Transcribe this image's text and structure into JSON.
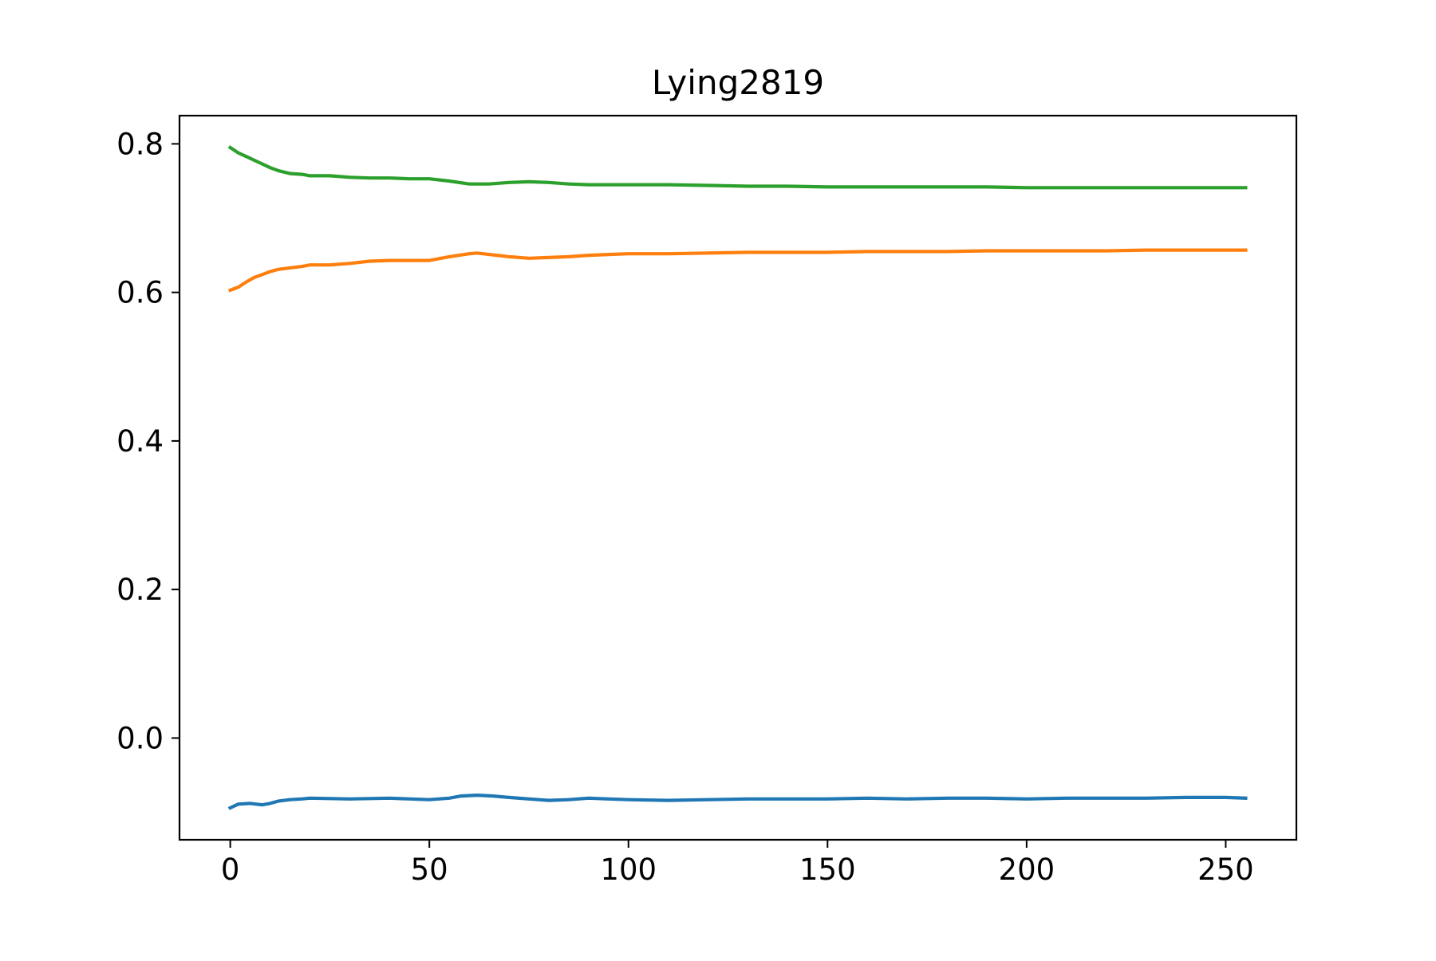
{
  "chart_data": {
    "type": "line",
    "title": "Lying2819",
    "xlabel": "",
    "ylabel": "",
    "xlim": [
      -12.75,
      267.75
    ],
    "ylim": [
      -0.137,
      0.838
    ],
    "x_ticks": [
      0,
      50,
      100,
      150,
      200,
      250
    ],
    "x_tick_labels": [
      "0",
      "50",
      "100",
      "150",
      "200",
      "250"
    ],
    "y_ticks": [
      0.0,
      0.2,
      0.4,
      0.6,
      0.8
    ],
    "y_tick_labels": [
      "0.0",
      "0.2",
      "0.4",
      "0.6",
      "0.8"
    ],
    "grid": false,
    "legend": "none",
    "series": [
      {
        "name": "blue",
        "color": "#1f77b4",
        "points": [
          [
            0,
            -0.094
          ],
          [
            2,
            -0.089
          ],
          [
            5,
            -0.088
          ],
          [
            8,
            -0.09
          ],
          [
            10,
            -0.088
          ],
          [
            12,
            -0.085
          ],
          [
            15,
            -0.083
          ],
          [
            18,
            -0.082
          ],
          [
            20,
            -0.081
          ],
          [
            30,
            -0.082
          ],
          [
            40,
            -0.081
          ],
          [
            50,
            -0.083
          ],
          [
            55,
            -0.081
          ],
          [
            58,
            -0.078
          ],
          [
            62,
            -0.077
          ],
          [
            66,
            -0.078
          ],
          [
            70,
            -0.08
          ],
          [
            75,
            -0.082
          ],
          [
            80,
            -0.084
          ],
          [
            85,
            -0.083
          ],
          [
            90,
            -0.081
          ],
          [
            95,
            -0.082
          ],
          [
            100,
            -0.083
          ],
          [
            110,
            -0.084
          ],
          [
            120,
            -0.083
          ],
          [
            130,
            -0.082
          ],
          [
            140,
            -0.082
          ],
          [
            150,
            -0.082
          ],
          [
            160,
            -0.081
          ],
          [
            170,
            -0.082
          ],
          [
            180,
            -0.081
          ],
          [
            190,
            -0.081
          ],
          [
            200,
            -0.082
          ],
          [
            210,
            -0.081
          ],
          [
            220,
            -0.081
          ],
          [
            230,
            -0.081
          ],
          [
            240,
            -0.08
          ],
          [
            250,
            -0.08
          ],
          [
            255,
            -0.081
          ]
        ]
      },
      {
        "name": "orange",
        "color": "#ff7f0e",
        "points": [
          [
            0,
            0.603
          ],
          [
            2,
            0.607
          ],
          [
            4,
            0.614
          ],
          [
            6,
            0.62
          ],
          [
            8,
            0.624
          ],
          [
            10,
            0.628
          ],
          [
            12,
            0.631
          ],
          [
            15,
            0.633
          ],
          [
            18,
            0.635
          ],
          [
            20,
            0.637
          ],
          [
            25,
            0.637
          ],
          [
            30,
            0.639
          ],
          [
            35,
            0.642
          ],
          [
            40,
            0.643
          ],
          [
            45,
            0.643
          ],
          [
            50,
            0.643
          ],
          [
            55,
            0.648
          ],
          [
            60,
            0.652
          ],
          [
            62,
            0.653
          ],
          [
            65,
            0.651
          ],
          [
            70,
            0.648
          ],
          [
            75,
            0.646
          ],
          [
            80,
            0.647
          ],
          [
            85,
            0.648
          ],
          [
            90,
            0.65
          ],
          [
            95,
            0.651
          ],
          [
            100,
            0.652
          ],
          [
            110,
            0.652
          ],
          [
            120,
            0.653
          ],
          [
            130,
            0.654
          ],
          [
            140,
            0.654
          ],
          [
            150,
            0.654
          ],
          [
            160,
            0.655
          ],
          [
            170,
            0.655
          ],
          [
            180,
            0.655
          ],
          [
            190,
            0.656
          ],
          [
            200,
            0.656
          ],
          [
            210,
            0.656
          ],
          [
            220,
            0.656
          ],
          [
            230,
            0.657
          ],
          [
            240,
            0.657
          ],
          [
            250,
            0.657
          ],
          [
            255,
            0.657
          ]
        ]
      },
      {
        "name": "green",
        "color": "#2ca02c",
        "points": [
          [
            0,
            0.795
          ],
          [
            2,
            0.788
          ],
          [
            4,
            0.783
          ],
          [
            6,
            0.778
          ],
          [
            8,
            0.773
          ],
          [
            10,
            0.768
          ],
          [
            12,
            0.764
          ],
          [
            15,
            0.76
          ],
          [
            18,
            0.759
          ],
          [
            20,
            0.757
          ],
          [
            25,
            0.757
          ],
          [
            30,
            0.755
          ],
          [
            35,
            0.754
          ],
          [
            40,
            0.754
          ],
          [
            45,
            0.753
          ],
          [
            50,
            0.753
          ],
          [
            55,
            0.75
          ],
          [
            60,
            0.746
          ],
          [
            65,
            0.746
          ],
          [
            70,
            0.748
          ],
          [
            75,
            0.749
          ],
          [
            80,
            0.748
          ],
          [
            85,
            0.746
          ],
          [
            90,
            0.745
          ],
          [
            95,
            0.745
          ],
          [
            100,
            0.745
          ],
          [
            110,
            0.745
          ],
          [
            120,
            0.744
          ],
          [
            130,
            0.743
          ],
          [
            140,
            0.743
          ],
          [
            150,
            0.742
          ],
          [
            160,
            0.742
          ],
          [
            170,
            0.742
          ],
          [
            180,
            0.742
          ],
          [
            190,
            0.742
          ],
          [
            200,
            0.741
          ],
          [
            210,
            0.741
          ],
          [
            220,
            0.741
          ],
          [
            230,
            0.741
          ],
          [
            240,
            0.741
          ],
          [
            250,
            0.741
          ],
          [
            255,
            0.741
          ]
        ]
      }
    ]
  }
}
